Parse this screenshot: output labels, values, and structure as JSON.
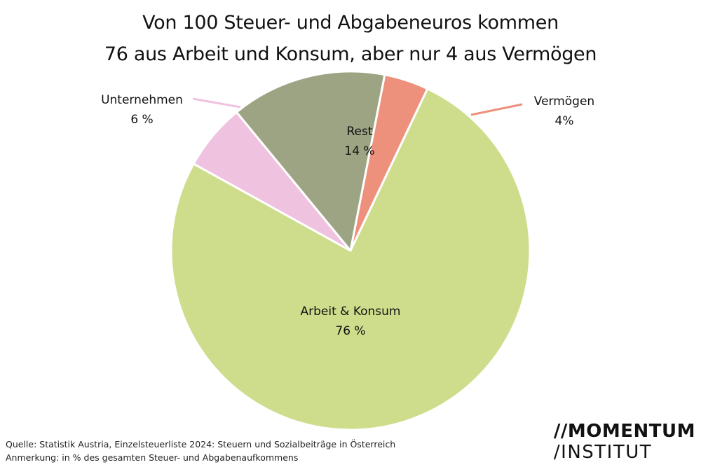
{
  "title": {
    "line1": "Von 100 Steuer- und Abgabeneuros kommen",
    "line2": "76 aus Arbeit und Konsum, aber nur 4 aus Vermögen"
  },
  "chart_data": {
    "type": "pie",
    "unit": "%",
    "slices": [
      {
        "name": "Arbeit & Konsum",
        "value": 76,
        "value_label": "76 %",
        "color": "#cedd8c"
      },
      {
        "name": "Unternehmen",
        "value": 6,
        "value_label": "6 %",
        "color": "#efc3e0"
      },
      {
        "name": "Rest",
        "value": 14,
        "value_label": "14 %",
        "color": "#9da483"
      },
      {
        "name": "Vermögen",
        "value": 4,
        "value_label": "4%",
        "color": "#ed907c"
      }
    ]
  },
  "footer": {
    "source": "Quelle: Statistik Austria, Einzelsteuerliste 2024: Steuern und Sozialbeiträge in Österreich",
    "note": "Anmerkung: in % des gesamten Steuer- und Abgabenaufkommens"
  },
  "logo": {
    "line1": "//MOMENTUM",
    "line2": "/INSTITUT"
  }
}
